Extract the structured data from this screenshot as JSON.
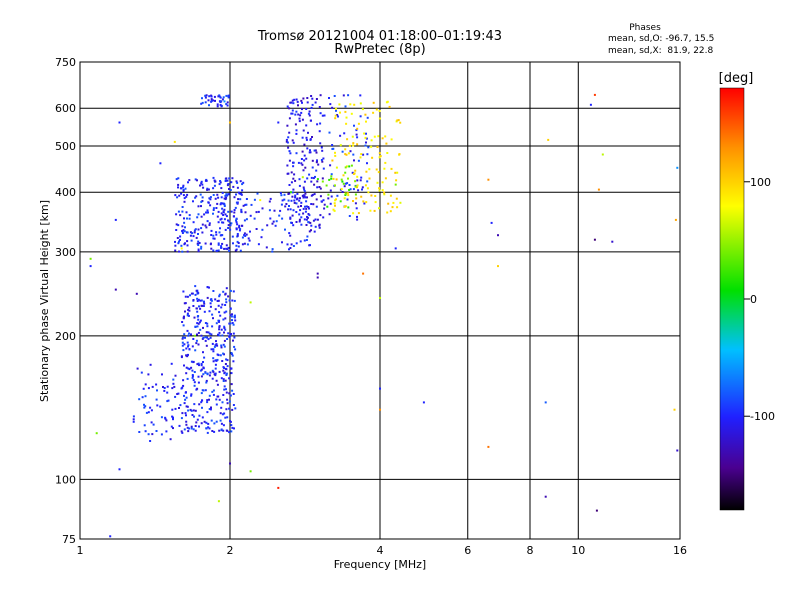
{
  "chart_data": {
    "type": "scatter",
    "title": "Tromsø 20121004 01:18:00–01:19:43",
    "subtitle": "RwPretec (8p)",
    "xlabel": "Frequency [MHz]",
    "ylabel": "Stationary phase Virtual Height [km]",
    "x_scale": "log",
    "y_scale": "log",
    "xlim": [
      1,
      16
    ],
    "ylim": [
      75,
      750
    ],
    "x_ticks": [
      1,
      2,
      4,
      6,
      8,
      10,
      16
    ],
    "y_ticks": [
      75,
      100,
      200,
      300,
      400,
      500,
      600,
      750
    ],
    "grid": true,
    "stats": {
      "header": "Phases",
      "line_o": "mean, sd,O: -96.7, 15.5",
      "line_x": "mean, sd,X:  81.9, 22.8"
    },
    "colorbar": {
      "label": "[deg]",
      "range": [
        -180,
        180
      ],
      "ticks": [
        100,
        0,
        -100
      ]
    },
    "clusters": [
      {
        "x": [
          1.28,
          1.6
        ],
        "y": [
          120,
          175
        ],
        "n": 70,
        "phase": -100
      },
      {
        "x": [
          1.6,
          2.05
        ],
        "y": [
          125,
          255
        ],
        "n": 420,
        "phase": -100
      },
      {
        "x": [
          1.55,
          2.15
        ],
        "y": [
          300,
          430
        ],
        "n": 260,
        "phase": -100
      },
      {
        "x": [
          1.85,
          2.9
        ],
        "y": [
          300,
          400
        ],
        "n": 120,
        "phase": -100
      },
      {
        "x": [
          1.75,
          2.0
        ],
        "y": [
          605,
          640
        ],
        "n": 40,
        "phase": -100
      },
      {
        "x": [
          2.6,
          3.1
        ],
        "y": [
          330,
          640
        ],
        "n": 200,
        "phase": -110
      },
      {
        "x": [
          3.1,
          3.8
        ],
        "y": [
          350,
          640
        ],
        "n": 70,
        "phase": -100
      },
      {
        "x": [
          3.2,
          4.4
        ],
        "y": [
          360,
          620
        ],
        "n": 130,
        "phase": 90
      },
      {
        "x": [
          3.0,
          3.6
        ],
        "y": [
          370,
          460
        ],
        "n": 25,
        "phase": 30
      }
    ],
    "points": [
      {
        "x": 1.2,
        "y": 560,
        "phase": -100
      },
      {
        "x": 1.05,
        "y": 290,
        "phase": 40
      },
      {
        "x": 1.05,
        "y": 280,
        "phase": -100
      },
      {
        "x": 1.18,
        "y": 350,
        "phase": -100
      },
      {
        "x": 1.18,
        "y": 250,
        "phase": -130
      },
      {
        "x": 1.3,
        "y": 245,
        "phase": -130
      },
      {
        "x": 1.45,
        "y": 460,
        "phase": -100
      },
      {
        "x": 1.55,
        "y": 510,
        "phase": 90
      },
      {
        "x": 1.08,
        "y": 125,
        "phase": 40
      },
      {
        "x": 1.2,
        "y": 105,
        "phase": -100
      },
      {
        "x": 1.15,
        "y": 76,
        "phase": -100
      },
      {
        "x": 1.9,
        "y": 90,
        "phase": 60
      },
      {
        "x": 2.0,
        "y": 108,
        "phase": -130
      },
      {
        "x": 2.2,
        "y": 104,
        "phase": 40
      },
      {
        "x": 2.5,
        "y": 96,
        "phase": 170
      },
      {
        "x": 2.0,
        "y": 560,
        "phase": 110
      },
      {
        "x": 2.5,
        "y": 560,
        "phase": -100
      },
      {
        "x": 4.3,
        "y": 415,
        "phase": 40
      },
      {
        "x": 4.3,
        "y": 305,
        "phase": -100
      },
      {
        "x": 4.0,
        "y": 240,
        "phase": 60
      },
      {
        "x": 3.0,
        "y": 270,
        "phase": -130
      },
      {
        "x": 3.0,
        "y": 265,
        "phase": -130
      },
      {
        "x": 3.7,
        "y": 270,
        "phase": 140
      },
      {
        "x": 4.0,
        "y": 155,
        "phase": -100
      },
      {
        "x": 4.0,
        "y": 140,
        "phase": 130
      },
      {
        "x": 4.9,
        "y": 145,
        "phase": -100
      },
      {
        "x": 6.6,
        "y": 425,
        "phase": 130
      },
      {
        "x": 6.7,
        "y": 345,
        "phase": -100
      },
      {
        "x": 6.9,
        "y": 325,
        "phase": -130
      },
      {
        "x": 6.9,
        "y": 280,
        "phase": 100
      },
      {
        "x": 6.6,
        "y": 117,
        "phase": 140
      },
      {
        "x": 8.7,
        "y": 515,
        "phase": 100
      },
      {
        "x": 8.6,
        "y": 145,
        "phase": -80
      },
      {
        "x": 8.6,
        "y": 92,
        "phase": -130
      },
      {
        "x": 10.8,
        "y": 640,
        "phase": 160
      },
      {
        "x": 10.6,
        "y": 610,
        "phase": -100
      },
      {
        "x": 11.2,
        "y": 480,
        "phase": 60
      },
      {
        "x": 11.0,
        "y": 405,
        "phase": 130
      },
      {
        "x": 10.8,
        "y": 318,
        "phase": -150
      },
      {
        "x": 11.7,
        "y": 315,
        "phase": -120
      },
      {
        "x": 10.9,
        "y": 86,
        "phase": -150
      },
      {
        "x": 15.8,
        "y": 450,
        "phase": -60
      },
      {
        "x": 15.7,
        "y": 350,
        "phase": 120
      },
      {
        "x": 15.6,
        "y": 140,
        "phase": 100
      },
      {
        "x": 15.8,
        "y": 115,
        "phase": -120
      },
      {
        "x": 1.6,
        "y": 305,
        "phase": 80
      },
      {
        "x": 2.2,
        "y": 235,
        "phase": 60
      },
      {
        "x": 1.7,
        "y": 200,
        "phase": 40
      },
      {
        "x": 2.65,
        "y": 400,
        "phase": 20
      },
      {
        "x": 2.3,
        "y": 385,
        "phase": 80
      },
      {
        "x": 3.55,
        "y": 610,
        "phase": 90
      },
      {
        "x": 1.95,
        "y": 620,
        "phase": -60
      },
      {
        "x": 2.8,
        "y": 430,
        "phase": 60
      }
    ]
  }
}
